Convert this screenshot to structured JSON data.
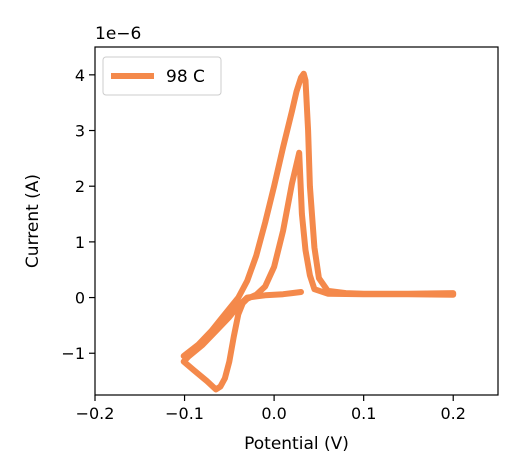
{
  "chart_data": {
    "type": "line",
    "title": "",
    "xlabel": "Potential (V)",
    "ylabel": "Current (A)",
    "offset_label": "1e−6",
    "y_scale_factor": 1e-06,
    "xlim": [
      -0.2,
      0.25
    ],
    "ylim": [
      -1.75,
      4.5
    ],
    "xticks": [
      -0.2,
      -0.1,
      0.0,
      0.1,
      0.2
    ],
    "xtick_labels": [
      "−0.2",
      "−0.1",
      "0.0",
      "0.1",
      "0.2"
    ],
    "yticks": [
      -1,
      0,
      1,
      2,
      3,
      4
    ],
    "ytick_labels": [
      "−1",
      "0",
      "1",
      "2",
      "3",
      "4"
    ],
    "grid": false,
    "legend_position": "top-left",
    "series": [
      {
        "name": "98 C",
        "color": "#f4894b",
        "x": [
          -0.101,
          -0.085,
          -0.07,
          -0.06,
          -0.05,
          -0.04,
          -0.03,
          -0.02,
          -0.01,
          0.0,
          0.01,
          0.02,
          0.025,
          0.03,
          0.033,
          0.035,
          0.038,
          0.04,
          0.045,
          0.05,
          0.06,
          0.08,
          0.1,
          0.15,
          0.2,
          0.2,
          0.15,
          0.1,
          0.06,
          0.045,
          0.04,
          0.035,
          0.031,
          0.028,
          0.02,
          0.01,
          0.0,
          -0.01,
          -0.02,
          -0.03,
          -0.035,
          -0.04,
          -0.045,
          -0.05,
          -0.055,
          -0.06,
          -0.065,
          -0.075,
          -0.09,
          -0.101,
          -0.095,
          -0.08,
          -0.065,
          -0.05,
          -0.04,
          -0.03,
          -0.02,
          -0.01,
          0.0,
          0.01,
          0.02,
          0.03
        ],
        "y": [
          -1.05,
          -0.85,
          -0.6,
          -0.4,
          -0.2,
          0.0,
          0.3,
          0.75,
          1.35,
          2.0,
          2.7,
          3.35,
          3.7,
          3.95,
          4.02,
          3.9,
          3.0,
          2.0,
          0.9,
          0.35,
          0.12,
          0.08,
          0.07,
          0.07,
          0.08,
          0.05,
          0.06,
          0.06,
          0.07,
          0.15,
          0.4,
          0.85,
          1.5,
          2.6,
          2.05,
          1.2,
          0.55,
          0.2,
          0.05,
          -0.02,
          -0.1,
          -0.3,
          -0.7,
          -1.15,
          -1.45,
          -1.6,
          -1.65,
          -1.5,
          -1.3,
          -1.15,
          -1.05,
          -0.85,
          -0.6,
          -0.35,
          -0.15,
          0.0,
          0.02,
          0.04,
          0.05,
          0.06,
          0.08,
          0.1
        ]
      }
    ]
  }
}
